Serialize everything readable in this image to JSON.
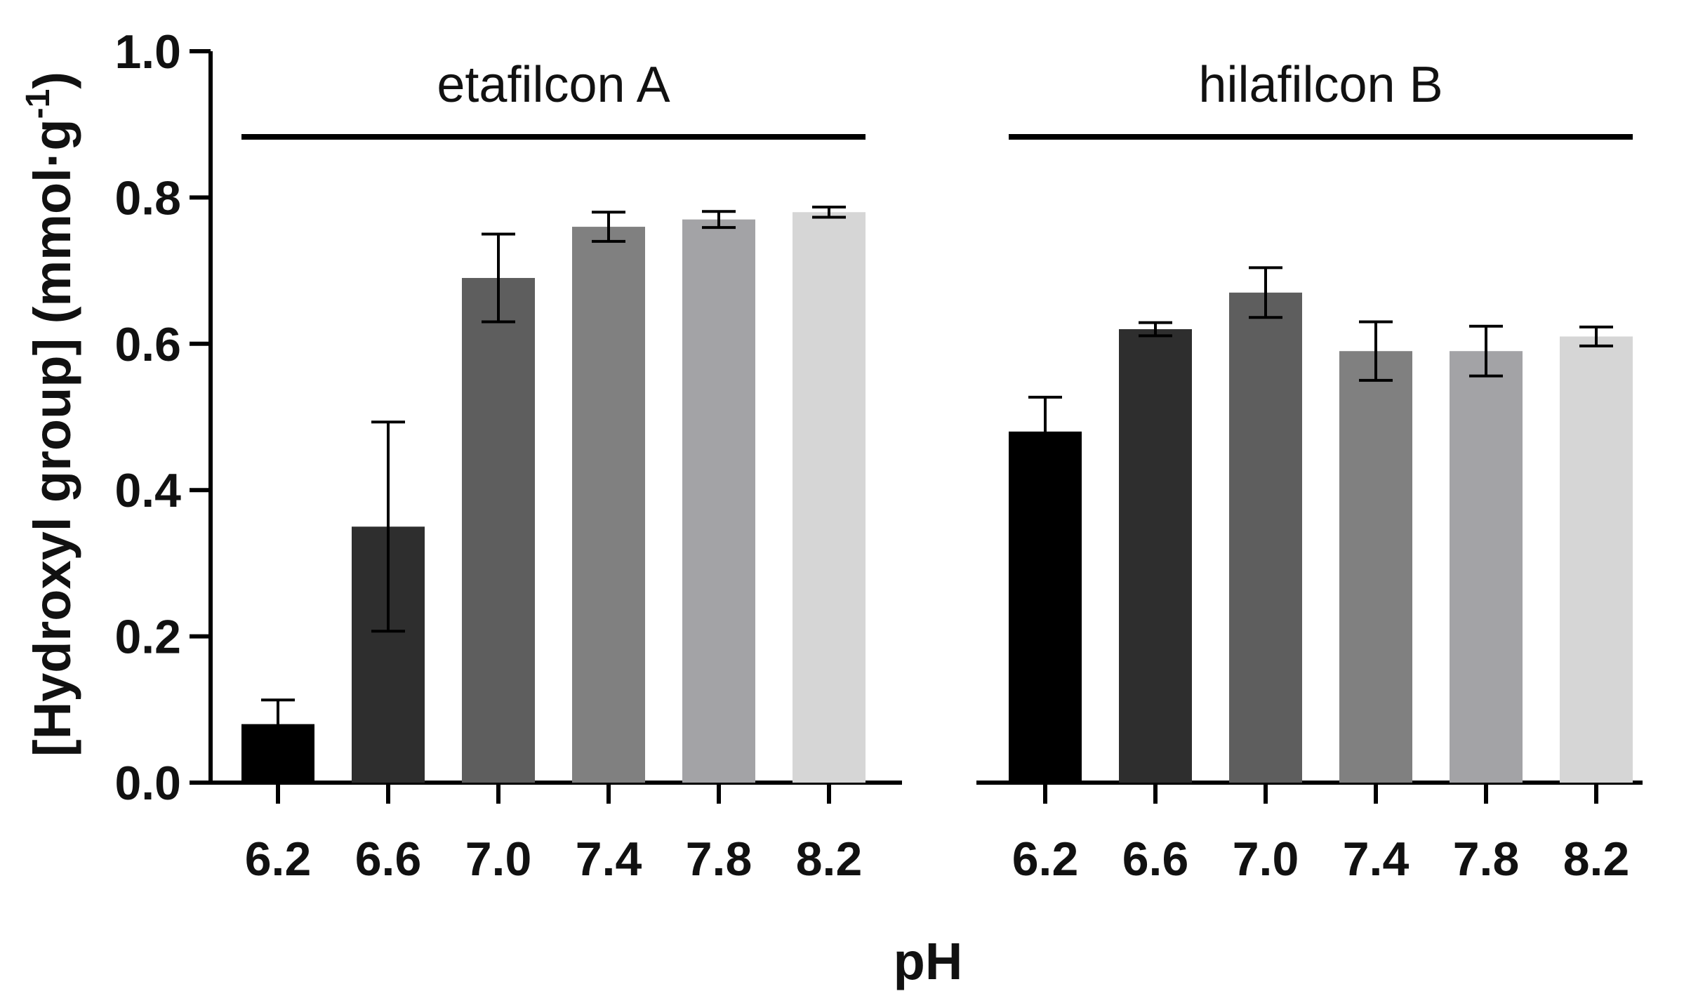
{
  "chart_data": {
    "type": "bar",
    "title": "",
    "xlabel": "pH",
    "ylabel": "[Hydroxyl group] (mmol·g",
    "ylabel_superscript": "-1",
    "ylabel_suffix": ")",
    "ylim": [
      0,
      1.0
    ],
    "yticks": [
      "0.0",
      "0.2",
      "0.4",
      "0.6",
      "0.8",
      "1.0"
    ],
    "categories": [
      "6.2",
      "6.6",
      "7.0",
      "7.4",
      "7.8",
      "8.2"
    ],
    "bar_colors": [
      "#000000",
      "#2e2e2e",
      "#5e5e5e",
      "#808080",
      "#a3a3a6",
      "#d6d6d6"
    ],
    "groups": [
      {
        "name": "etafilcon A",
        "values": [
          0.08,
          0.35,
          0.69,
          0.76,
          0.77,
          0.78
        ],
        "errors": [
          0.033,
          0.143,
          0.06,
          0.02,
          0.011,
          0.007
        ]
      },
      {
        "name": "hilafilcon B",
        "values": [
          0.48,
          0.62,
          0.67,
          0.59,
          0.59,
          0.61
        ],
        "errors": [
          0.047,
          0.009,
          0.034,
          0.04,
          0.034,
          0.013
        ]
      }
    ]
  }
}
